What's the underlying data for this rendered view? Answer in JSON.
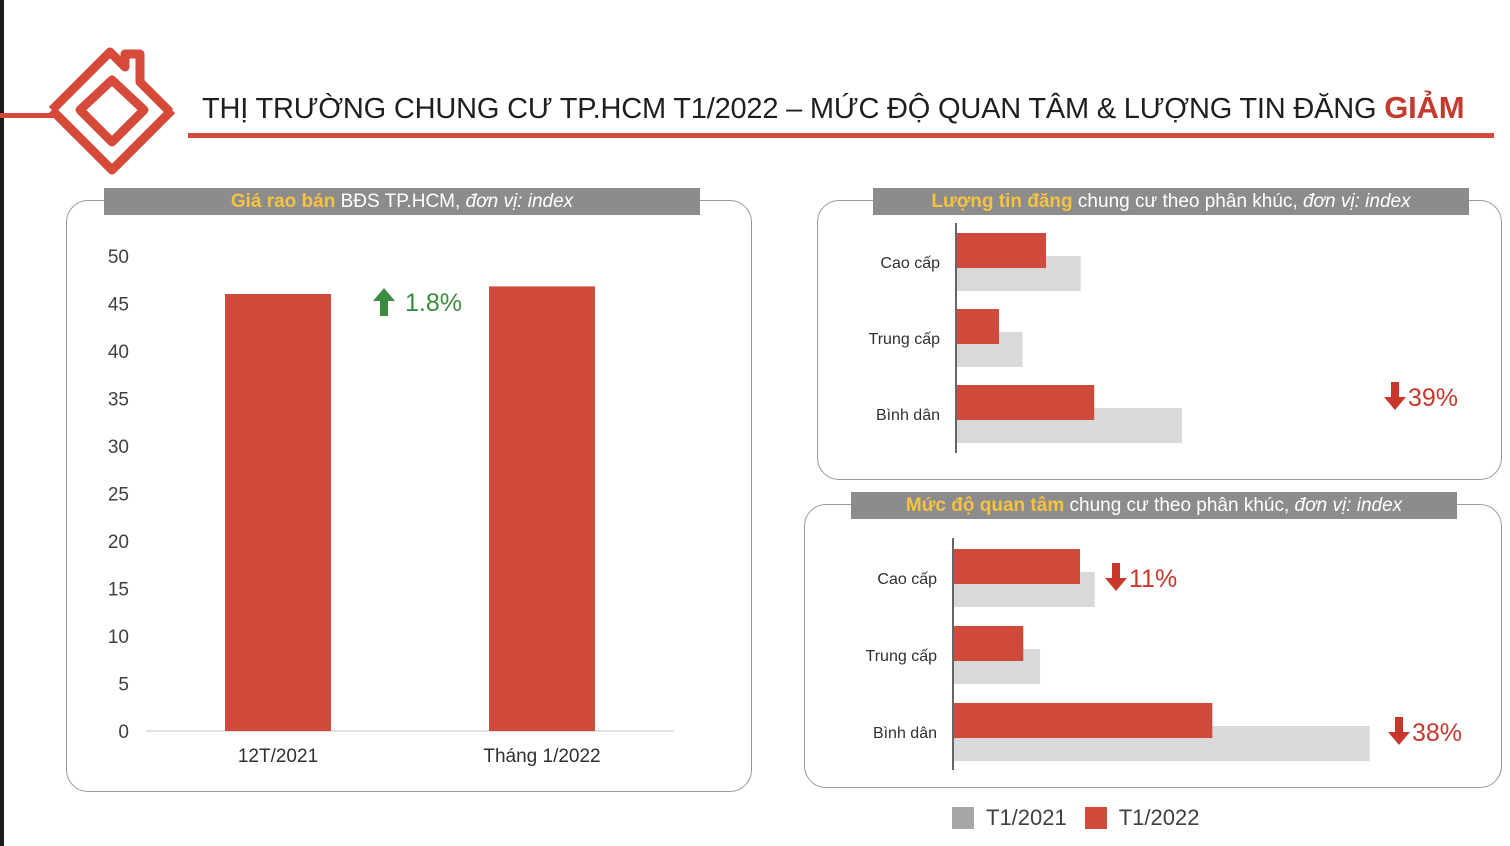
{
  "page": {
    "title_main": "THỊ TRƯỜNG CHUNG CƯ TP.HCM T1/2022 – MỨC ĐỘ QUAN TÂM & LƯỢNG TIN ĐĂNG ",
    "title_highlight": "GIẢM"
  },
  "colors": {
    "accent": "#d04a3c",
    "gray_bar": "#d9d9d9",
    "header_bg": "#8c8c8c",
    "header_em": "#f5c242",
    "up": "#3a8c3f",
    "down": "#c9372c"
  },
  "panels": {
    "price": {
      "header_em": "Giá rao bán",
      "header_text": " BĐS TP.HCM, ",
      "header_italic": "đơn vị: index"
    },
    "listings": {
      "header_em": "Lượng tin đăng",
      "header_text": " chung cư theo phân khúc, ",
      "header_italic": "đơn vị: index"
    },
    "interest": {
      "header_em": "Mức độ quan tâm",
      "header_text": " chung cư theo phân khúc, ",
      "header_italic": "đơn vị: index"
    }
  },
  "legend": {
    "t2021": "T1/2021",
    "t2022": "T1/2022"
  },
  "chart_data": [
    {
      "type": "bar",
      "categories": [
        "12T/2021",
        "Tháng 1/2022"
      ],
      "values": [
        46,
        46.8
      ],
      "ylim": [
        0,
        50
      ],
      "yticks": [
        0,
        5,
        10,
        15,
        20,
        25,
        30,
        35,
        40,
        45,
        50
      ],
      "annotations": [
        {
          "text": "1.8%",
          "direction": "up"
        }
      ],
      "grid": false
    },
    {
      "type": "bar",
      "orientation": "horizontal",
      "categories": [
        "Cao cấp",
        "Trung cấp",
        "Bình dân"
      ],
      "series": [
        {
          "name": "T1/2021",
          "values": [
            100,
            53,
            182
          ]
        },
        {
          "name": "T1/2022",
          "values": [
            72,
            34,
            111
          ]
        }
      ],
      "annotations": [
        {
          "category": "Bình dân",
          "text": "39%",
          "direction": "down"
        }
      ],
      "legend": "bottom"
    },
    {
      "type": "bar",
      "orientation": "horizontal",
      "categories": [
        "Cao cấp",
        "Trung cấp",
        "Bình dân"
      ],
      "series": [
        {
          "name": "T1/2021",
          "values": [
            67,
            41,
            198
          ]
        },
        {
          "name": "T1/2022",
          "values": [
            60,
            33,
            123
          ]
        }
      ],
      "annotations": [
        {
          "category": "Cao cấp",
          "text": "11%",
          "direction": "down"
        },
        {
          "category": "Bình dân",
          "text": "38%",
          "direction": "down"
        }
      ],
      "legend": "bottom"
    }
  ]
}
